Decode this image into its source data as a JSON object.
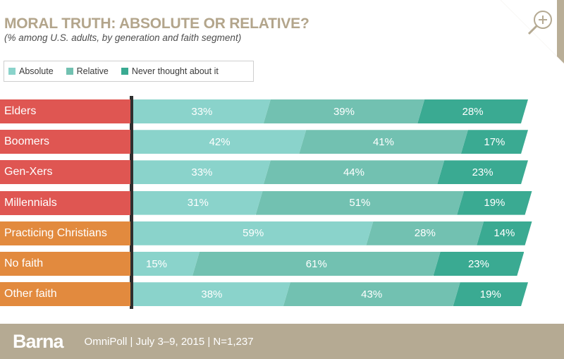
{
  "header": {
    "title": "MORAL TRUTH: ABSOLUTE OR RELATIVE?",
    "subtitle": "(% among U.S. adults, by generation and faith segment)"
  },
  "icons": {
    "zoom": "zoom-in-icon"
  },
  "colors": {
    "absolute": "#8ad3cb",
    "relative": "#72c1b1",
    "never": "#3aaa92",
    "generation_label": "#df5652",
    "faith_label": "#e28a3e",
    "title": "#b3a58b",
    "footer": "#b5aa93"
  },
  "chart_data": {
    "type": "bar",
    "orientation": "horizontal",
    "stacked": true,
    "title": "MORAL TRUTH: ABSOLUTE OR RELATIVE?",
    "subtitle": "(% among U.S. adults, by generation and faith segment)",
    "categories": [
      "Elders",
      "Boomers",
      "Gen-Xers",
      "Millennials",
      "Practicing Christians",
      "No faith",
      "Other faith"
    ],
    "category_groups": [
      "generation",
      "generation",
      "generation",
      "generation",
      "faith",
      "faith",
      "faith"
    ],
    "series": [
      {
        "name": "Absolute",
        "values": [
          33,
          42,
          33,
          31,
          59,
          15,
          38
        ]
      },
      {
        "name": "Relative",
        "values": [
          39,
          41,
          44,
          51,
          28,
          61,
          43
        ]
      },
      {
        "name": "Never thought about it",
        "values": [
          28,
          17,
          23,
          19,
          14,
          23,
          19
        ]
      }
    ],
    "value_suffix": "%",
    "legend_position": "top-left"
  },
  "footer": {
    "brand": "Barna",
    "source": "OmniPoll   |   July 3–9, 2015   |   N=1,237"
  }
}
